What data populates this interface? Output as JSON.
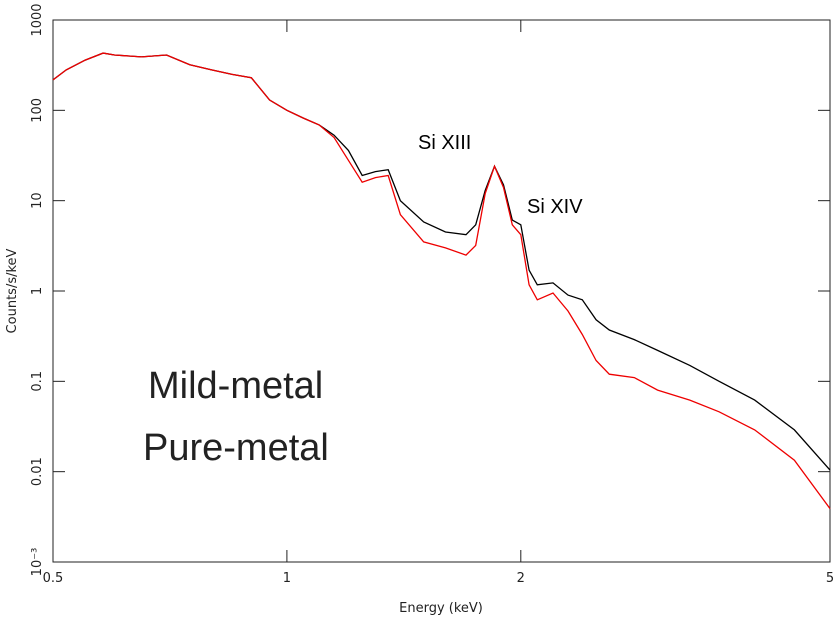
{
  "chart_data": {
    "type": "line",
    "x_label": "Energy (keV)",
    "y_label": "Counts/s/keV",
    "x_log": true,
    "y_log": true,
    "xlim": [
      0.5,
      5
    ],
    "ylim": [
      0.001,
      1000
    ],
    "xticks": [
      {
        "value": 0.5,
        "label": "0.5"
      },
      1,
      2,
      5
    ],
    "yticks": [
      {
        "value": 0.001,
        "label": "10⁻³"
      },
      0.01,
      0.1,
      1,
      10,
      100,
      1000
    ],
    "annotations": [
      "Si XIII",
      "Si XIV"
    ],
    "x": [
      0.5,
      0.52,
      0.55,
      0.58,
      0.6,
      0.65,
      0.7,
      0.75,
      0.8,
      0.85,
      0.9,
      0.95,
      1.0,
      1.05,
      1.1,
      1.15,
      1.2,
      1.25,
      1.3,
      1.35,
      1.4,
      1.5,
      1.6,
      1.7,
      1.75,
      1.8,
      1.85,
      1.9,
      1.95,
      2.0,
      2.05,
      2.1,
      2.2,
      2.3,
      2.4,
      2.5,
      2.6,
      2.8,
      3.0,
      3.3,
      3.6,
      4.0,
      4.5,
      5.0
    ],
    "series": [
      {
        "name": "Mild-metal",
        "color": "#000000",
        "values": [
          217,
          280,
          360,
          430,
          410,
          390,
          410,
          320,
          280,
          250,
          230,
          130,
          100,
          82,
          69,
          53,
          36,
          19,
          21,
          22,
          10,
          5.8,
          4.5,
          4.2,
          5.4,
          13,
          24,
          15,
          6.1,
          5.4,
          1.7,
          1.17,
          1.23,
          0.9,
          0.8,
          0.48,
          0.37,
          0.29,
          0.22,
          0.15,
          0.1,
          0.062,
          0.029,
          0.0104
        ]
      },
      {
        "name": "Pure-metal",
        "color": "#ee0000",
        "values": [
          217,
          280,
          360,
          430,
          410,
          390,
          410,
          320,
          280,
          250,
          230,
          130,
          100,
          82,
          69,
          50,
          28,
          16,
          18,
          19,
          7,
          3.5,
          3.0,
          2.5,
          3.2,
          12,
          24,
          14,
          5.4,
          4.2,
          1.17,
          0.8,
          0.95,
          0.6,
          0.33,
          0.17,
          0.12,
          0.11,
          0.08,
          0.062,
          0.046,
          0.029,
          0.0134,
          0.0039
        ]
      }
    ]
  }
}
